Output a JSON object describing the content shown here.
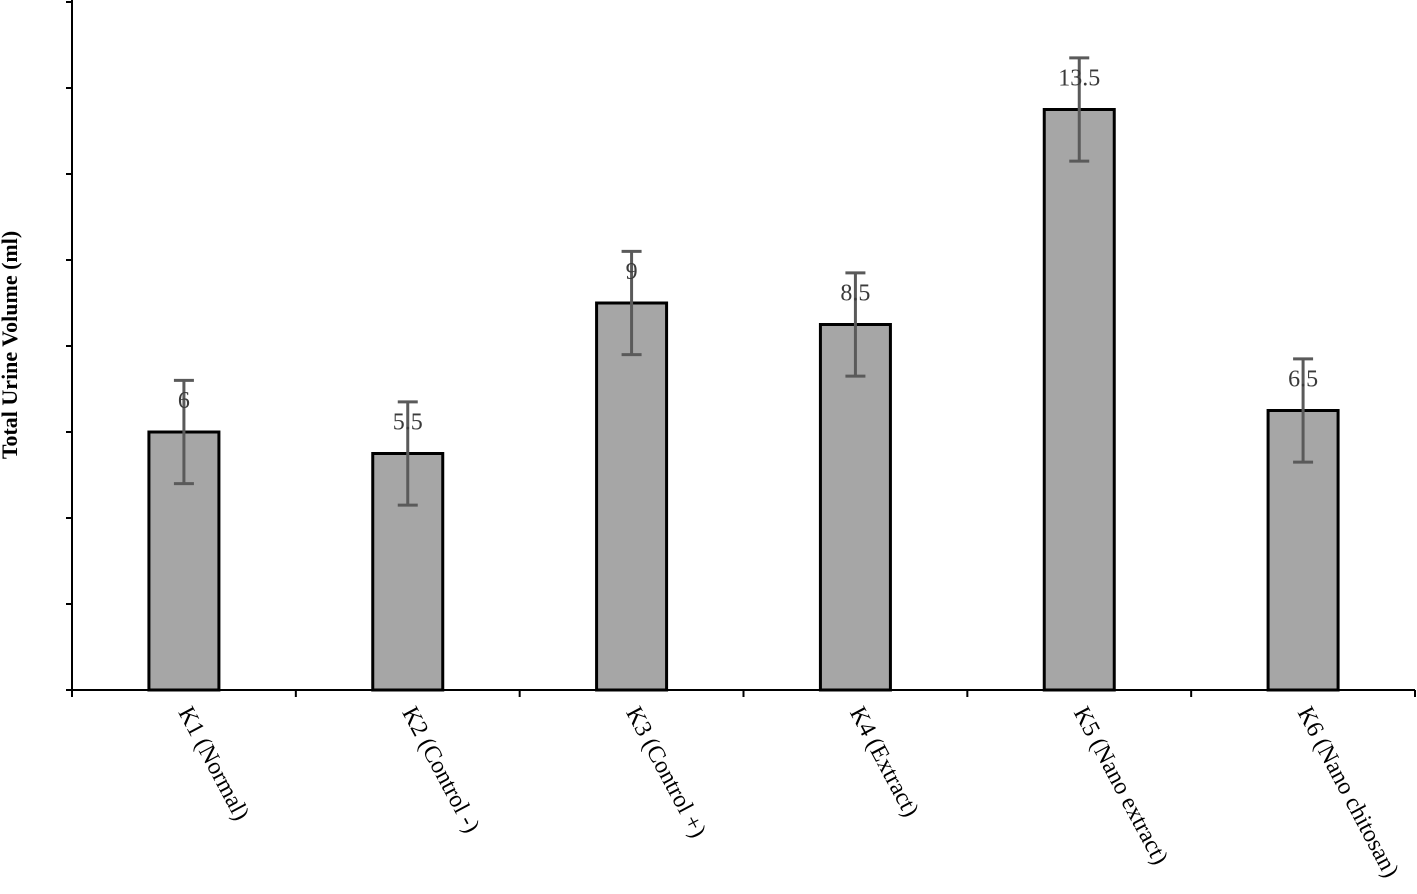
{
  "chart_data": {
    "type": "bar",
    "title": "",
    "xlabel": "",
    "ylabel": "Total Urine Volume (ml)",
    "categories": [
      "K1 (Normal)",
      "K2 (Control -)",
      "K3 (Control +)",
      "K4 (Extract)",
      "K5 (Nano extract)",
      "K6 (Nano chitosan)"
    ],
    "values": [
      6,
      5.5,
      9,
      8.5,
      13.5,
      6.5
    ],
    "value_labels": [
      "6",
      "5.5",
      "9",
      "8.5",
      "13.5",
      "6.5"
    ],
    "error": [
      1.2,
      1.2,
      1.2,
      1.2,
      1.2,
      1.2
    ],
    "ylim": [
      0,
      16
    ],
    "y_ticks": [
      0,
      2,
      4,
      6,
      8,
      10,
      12,
      14,
      16
    ],
    "y_tick_labels_shown": false,
    "grid": false,
    "legend": "none",
    "colors": {
      "bar_fill": "#a6a6a6",
      "bar_stroke": "#000000",
      "error_bar": "#5a5a5a",
      "axis": "#000000"
    }
  }
}
